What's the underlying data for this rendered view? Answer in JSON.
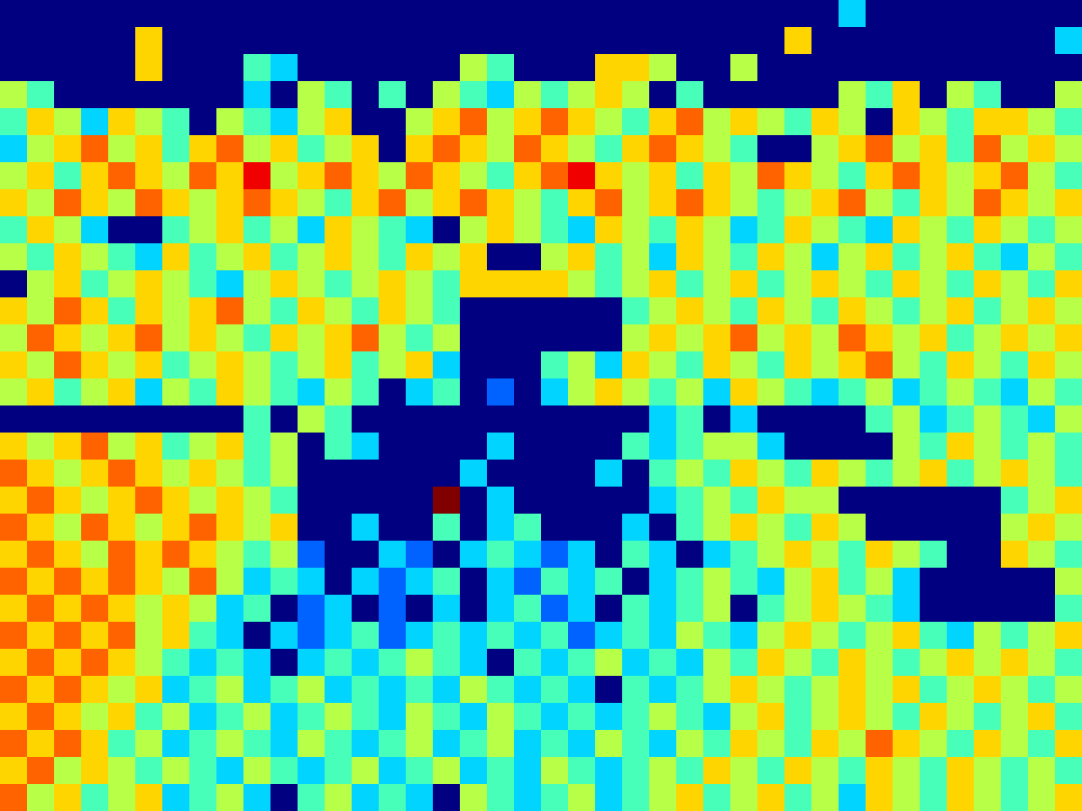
{
  "chart_data": {
    "type": "heatmap",
    "tick_labels": false,
    "clim": [
      0,
      9
    ],
    "cells": [
      [
        0,
        0,
        0,
        0,
        0,
        0,
        0,
        0,
        0,
        0,
        0,
        0,
        0,
        0,
        0,
        0,
        0,
        0,
        0,
        0,
        0,
        0,
        0,
        0,
        0,
        0,
        0,
        0,
        0,
        0,
        0,
        3,
        0,
        0,
        0,
        0,
        0,
        0,
        0,
        0
      ],
      [
        0,
        0,
        0,
        0,
        0,
        6,
        0,
        0,
        0,
        0,
        0,
        0,
        0,
        0,
        0,
        0,
        0,
        0,
        0,
        0,
        0,
        0,
        0,
        0,
        0,
        0,
        0,
        0,
        0,
        6,
        0,
        0,
        0,
        0,
        0,
        0,
        0,
        0,
        0,
        3
      ],
      [
        0,
        0,
        0,
        0,
        0,
        6,
        0,
        0,
        0,
        4,
        3,
        0,
        0,
        0,
        0,
        0,
        0,
        5,
        4,
        0,
        0,
        0,
        6,
        6,
        5,
        0,
        0,
        5,
        0,
        0,
        0,
        0,
        0,
        0,
        0,
        0,
        0,
        0,
        0,
        0
      ],
      [
        5,
        4,
        0,
        0,
        0,
        0,
        0,
        0,
        0,
        3,
        0,
        5,
        4,
        0,
        4,
        0,
        5,
        4,
        3,
        5,
        4,
        5,
        6,
        5,
        0,
        4,
        0,
        0,
        0,
        0,
        0,
        5,
        4,
        6,
        0,
        5,
        4,
        0,
        0,
        5
      ],
      [
        4,
        6,
        5,
        3,
        6,
        5,
        4,
        0,
        5,
        4,
        3,
        5,
        6,
        0,
        0,
        5,
        6,
        7,
        5,
        6,
        7,
        6,
        5,
        4,
        6,
        7,
        5,
        6,
        5,
        4,
        6,
        5,
        0,
        6,
        5,
        4,
        6,
        6,
        5,
        4
      ],
      [
        3,
        5,
        6,
        7,
        5,
        6,
        4,
        6,
        7,
        5,
        6,
        4,
        5,
        6,
        0,
        6,
        7,
        6,
        5,
        7,
        6,
        5,
        4,
        6,
        7,
        6,
        5,
        4,
        0,
        0,
        5,
        6,
        7,
        5,
        6,
        4,
        7,
        5,
        6,
        5
      ],
      [
        5,
        6,
        4,
        6,
        7,
        6,
        5,
        7,
        6,
        8,
        5,
        6,
        7,
        6,
        5,
        7,
        6,
        5,
        4,
        6,
        7,
        8,
        6,
        5,
        6,
        4,
        6,
        5,
        7,
        6,
        5,
        4,
        6,
        7,
        6,
        5,
        6,
        7,
        5,
        4
      ],
      [
        6,
        5,
        7,
        6,
        5,
        7,
        6,
        5,
        6,
        7,
        6,
        5,
        4,
        6,
        7,
        5,
        6,
        7,
        6,
        5,
        4,
        6,
        7,
        5,
        6,
        7,
        6,
        5,
        4,
        5,
        6,
        7,
        5,
        4,
        6,
        5,
        7,
        6,
        5,
        6
      ],
      [
        4,
        6,
        5,
        3,
        0,
        0,
        4,
        5,
        6,
        4,
        5,
        3,
        6,
        5,
        4,
        3,
        0,
        5,
        6,
        5,
        4,
        3,
        6,
        5,
        4,
        6,
        5,
        3,
        4,
        6,
        5,
        4,
        3,
        6,
        5,
        4,
        6,
        5,
        4,
        5
      ],
      [
        5,
        4,
        6,
        5,
        4,
        3,
        6,
        4,
        5,
        6,
        4,
        5,
        6,
        5,
        4,
        6,
        5,
        6,
        0,
        0,
        5,
        6,
        4,
        5,
        3,
        6,
        5,
        4,
        6,
        5,
        3,
        5,
        6,
        4,
        5,
        6,
        4,
        3,
        5,
        4
      ],
      [
        0,
        5,
        6,
        4,
        5,
        6,
        5,
        4,
        3,
        5,
        6,
        5,
        4,
        5,
        6,
        5,
        4,
        6,
        6,
        6,
        6,
        5,
        4,
        5,
        6,
        4,
        5,
        6,
        4,
        5,
        6,
        5,
        4,
        6,
        5,
        4,
        6,
        5,
        4,
        6
      ],
      [
        6,
        5,
        7,
        6,
        4,
        6,
        5,
        6,
        7,
        5,
        4,
        6,
        5,
        4,
        6,
        5,
        4,
        0,
        0,
        0,
        0,
        0,
        0,
        4,
        5,
        6,
        5,
        4,
        6,
        5,
        4,
        6,
        5,
        4,
        5,
        6,
        4,
        5,
        6,
        5
      ],
      [
        5,
        7,
        6,
        5,
        6,
        7,
        5,
        6,
        5,
        4,
        6,
        5,
        6,
        7,
        5,
        4,
        5,
        0,
        0,
        0,
        0,
        0,
        0,
        5,
        6,
        5,
        6,
        7,
        5,
        6,
        5,
        7,
        6,
        5,
        6,
        4,
        5,
        6,
        5,
        6
      ],
      [
        6,
        5,
        7,
        6,
        5,
        6,
        4,
        5,
        6,
        5,
        4,
        5,
        6,
        4,
        5,
        6,
        3,
        0,
        0,
        0,
        4,
        5,
        3,
        6,
        5,
        4,
        6,
        5,
        4,
        6,
        5,
        6,
        7,
        5,
        4,
        6,
        5,
        4,
        6,
        5
      ],
      [
        5,
        6,
        4,
        5,
        6,
        3,
        5,
        4,
        6,
        5,
        4,
        3,
        5,
        4,
        0,
        3,
        4,
        0,
        2,
        0,
        3,
        5,
        6,
        5,
        4,
        5,
        3,
        6,
        5,
        4,
        3,
        4,
        5,
        3,
        4,
        5,
        4,
        3,
        5,
        4
      ],
      [
        0,
        0,
        0,
        0,
        0,
        0,
        0,
        0,
        0,
        4,
        0,
        5,
        4,
        0,
        0,
        0,
        0,
        0,
        0,
        0,
        0,
        0,
        0,
        0,
        3,
        4,
        0,
        3,
        0,
        0,
        0,
        0,
        4,
        5,
        3,
        4,
        5,
        4,
        3,
        5
      ],
      [
        6,
        5,
        6,
        7,
        5,
        6,
        4,
        5,
        6,
        4,
        5,
        0,
        4,
        3,
        0,
        0,
        0,
        0,
        3,
        0,
        0,
        0,
        0,
        4,
        3,
        4,
        5,
        5,
        3,
        0,
        0,
        0,
        0,
        5,
        4,
        6,
        5,
        4,
        5,
        4
      ],
      [
        7,
        6,
        5,
        6,
        7,
        6,
        5,
        6,
        5,
        4,
        5,
        0,
        0,
        0,
        0,
        0,
        0,
        3,
        0,
        0,
        0,
        0,
        3,
        0,
        4,
        5,
        4,
        6,
        5,
        4,
        6,
        5,
        4,
        5,
        6,
        4,
        5,
        6,
        5,
        4
      ],
      [
        6,
        7,
        6,
        5,
        6,
        7,
        6,
        5,
        6,
        5,
        4,
        0,
        0,
        0,
        0,
        0,
        9,
        0,
        3,
        0,
        0,
        0,
        0,
        0,
        3,
        4,
        5,
        4,
        6,
        5,
        5,
        0,
        0,
        0,
        0,
        0,
        0,
        4,
        5,
        6
      ],
      [
        7,
        6,
        5,
        7,
        6,
        5,
        6,
        7,
        6,
        5,
        6,
        0,
        0,
        3,
        0,
        0,
        4,
        0,
        3,
        4,
        0,
        0,
        0,
        3,
        0,
        4,
        5,
        6,
        5,
        4,
        6,
        5,
        0,
        0,
        0,
        0,
        0,
        5,
        6,
        5
      ],
      [
        6,
        7,
        6,
        5,
        7,
        6,
        7,
        6,
        5,
        4,
        5,
        2,
        0,
        0,
        3,
        2,
        0,
        3,
        4,
        3,
        2,
        3,
        0,
        4,
        3,
        0,
        3,
        4,
        5,
        6,
        5,
        4,
        6,
        5,
        4,
        0,
        0,
        6,
        5,
        4
      ],
      [
        7,
        6,
        7,
        6,
        7,
        6,
        5,
        7,
        5,
        3,
        4,
        3,
        0,
        3,
        2,
        3,
        4,
        0,
        3,
        2,
        4,
        3,
        4,
        0,
        3,
        4,
        5,
        4,
        3,
        5,
        6,
        4,
        5,
        3,
        0,
        0,
        0,
        0,
        0,
        5
      ],
      [
        6,
        7,
        6,
        7,
        6,
        5,
        6,
        5,
        3,
        4,
        0,
        2,
        3,
        0,
        2,
        0,
        3,
        0,
        3,
        4,
        2,
        3,
        0,
        4,
        3,
        4,
        5,
        0,
        4,
        5,
        6,
        5,
        4,
        3,
        0,
        0,
        0,
        0,
        0,
        4
      ],
      [
        7,
        6,
        7,
        6,
        7,
        5,
        6,
        4,
        3,
        0,
        3,
        2,
        3,
        4,
        2,
        3,
        4,
        3,
        4,
        3,
        4,
        2,
        3,
        4,
        3,
        5,
        4,
        3,
        5,
        6,
        5,
        4,
        5,
        6,
        4,
        3,
        5,
        4,
        5,
        6
      ],
      [
        6,
        7,
        6,
        7,
        6,
        5,
        4,
        3,
        4,
        3,
        0,
        3,
        4,
        3,
        4,
        5,
        4,
        3,
        0,
        4,
        3,
        4,
        5,
        3,
        4,
        3,
        5,
        4,
        6,
        5,
        4,
        6,
        5,
        4,
        5,
        6,
        5,
        6,
        5,
        4
      ],
      [
        7,
        6,
        7,
        6,
        5,
        6,
        3,
        4,
        5,
        3,
        4,
        5,
        3,
        4,
        3,
        4,
        3,
        5,
        4,
        3,
        4,
        3,
        0,
        4,
        3,
        4,
        5,
        6,
        5,
        4,
        5,
        6,
        5,
        6,
        4,
        5,
        6,
        5,
        4,
        5
      ],
      [
        6,
        7,
        6,
        5,
        6,
        4,
        5,
        3,
        4,
        5,
        3,
        4,
        5,
        4,
        3,
        5,
        4,
        3,
        5,
        4,
        3,
        4,
        3,
        4,
        5,
        4,
        3,
        5,
        6,
        4,
        5,
        6,
        5,
        4,
        6,
        5,
        4,
        5,
        6,
        4
      ],
      [
        7,
        6,
        7,
        6,
        4,
        5,
        3,
        4,
        5,
        4,
        3,
        5,
        4,
        3,
        4,
        5,
        3,
        4,
        5,
        3,
        4,
        3,
        5,
        4,
        3,
        5,
        4,
        6,
        5,
        4,
        6,
        5,
        7,
        6,
        5,
        4,
        6,
        5,
        4,
        6
      ],
      [
        6,
        7,
        5,
        6,
        5,
        4,
        5,
        4,
        3,
        5,
        4,
        3,
        4,
        5,
        3,
        4,
        5,
        3,
        4,
        3,
        5,
        4,
        3,
        4,
        5,
        4,
        6,
        5,
        4,
        6,
        5,
        4,
        6,
        5,
        4,
        6,
        5,
        4,
        5,
        4
      ],
      [
        7,
        5,
        6,
        4,
        5,
        6,
        3,
        4,
        5,
        3,
        0,
        4,
        5,
        3,
        4,
        3,
        0,
        5,
        4,
        3,
        4,
        5,
        3,
        4,
        5,
        6,
        4,
        5,
        6,
        4,
        5,
        3,
        6,
        5,
        4,
        6,
        5,
        4,
        5,
        6
      ]
    ]
  }
}
